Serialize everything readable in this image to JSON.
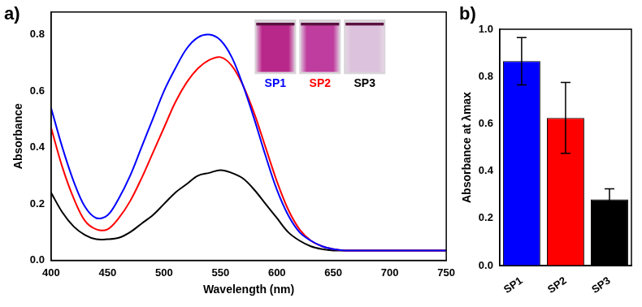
{
  "chart_data": [
    {
      "type": "line",
      "panel": "a)",
      "x_label": "Wavelength (nm)",
      "y_label": "Absorbance",
      "x": [
        400,
        410,
        420,
        430,
        440,
        450,
        460,
        470,
        480,
        490,
        500,
        510,
        520,
        530,
        540,
        550,
        560,
        570,
        580,
        590,
        600,
        610,
        620,
        630,
        640,
        650,
        660,
        670,
        680,
        690,
        700,
        710,
        720,
        730,
        740,
        750
      ],
      "series": [
        {
          "name": "SP1",
          "color": "#0000ff",
          "values": [
            0.54,
            0.4,
            0.28,
            0.19,
            0.15,
            0.16,
            0.22,
            0.3,
            0.4,
            0.5,
            0.6,
            0.68,
            0.75,
            0.79,
            0.8,
            0.78,
            0.72,
            0.62,
            0.5,
            0.37,
            0.25,
            0.16,
            0.1,
            0.07,
            0.05,
            0.04,
            0.035,
            0.035,
            0.035,
            0.035,
            0.035,
            0.035,
            0.035,
            0.035,
            0.035,
            0.035
          ]
        },
        {
          "name": "SP2",
          "color": "#ff0000",
          "values": [
            0.47,
            0.33,
            0.22,
            0.14,
            0.11,
            0.11,
            0.15,
            0.21,
            0.29,
            0.38,
            0.47,
            0.56,
            0.63,
            0.68,
            0.71,
            0.72,
            0.69,
            0.62,
            0.52,
            0.4,
            0.28,
            0.18,
            0.11,
            0.07,
            0.05,
            0.04,
            0.035,
            0.035,
            0.035,
            0.035,
            0.035,
            0.035,
            0.035,
            0.035,
            0.035,
            0.035
          ]
        },
        {
          "name": "SP3",
          "color": "#000000",
          "values": [
            0.24,
            0.17,
            0.12,
            0.09,
            0.075,
            0.075,
            0.08,
            0.1,
            0.13,
            0.16,
            0.2,
            0.24,
            0.27,
            0.3,
            0.31,
            0.32,
            0.31,
            0.29,
            0.25,
            0.2,
            0.15,
            0.1,
            0.07,
            0.05,
            0.04,
            0.035,
            0.035,
            0.035,
            0.035,
            0.035,
            0.035,
            0.035,
            0.035,
            0.035,
            0.035,
            0.035
          ]
        }
      ],
      "xlim": [
        400,
        750
      ],
      "xticks": [
        400,
        450,
        500,
        550,
        600,
        650,
        700,
        750
      ],
      "ylim": [
        0,
        0.88
      ],
      "yticks": [
        {
          "value": 0,
          "label": "0.0"
        },
        {
          "value": 0.2,
          "label": "0.2"
        },
        {
          "value": 0.4,
          "label": "0.4"
        },
        {
          "value": 0.6,
          "label": "0.6"
        },
        {
          "value": 0.8,
          "label": "0.8"
        }
      ],
      "grid": false
    },
    {
      "type": "bar",
      "panel": "b)",
      "y_label": "Absorbance at λmax",
      "categories": [
        "SP1",
        "SP2",
        "SP3"
      ],
      "values": [
        0.865,
        0.625,
        0.28
      ],
      "errors": [
        0.1,
        0.15,
        0.045
      ],
      "colors": [
        "#0000ff",
        "#ff0000",
        "#000000"
      ],
      "ylim": [
        0,
        1.0
      ],
      "yticks": [
        {
          "value": 0,
          "label": "0.0"
        },
        {
          "value": 0.2,
          "label": "0.2"
        },
        {
          "value": 0.4,
          "label": "0.4"
        },
        {
          "value": 0.6,
          "label": "0.6"
        },
        {
          "value": 0.8,
          "label": "0.8"
        },
        {
          "value": 1.0,
          "label": "1.0"
        }
      ],
      "grid": false
    }
  ]
}
